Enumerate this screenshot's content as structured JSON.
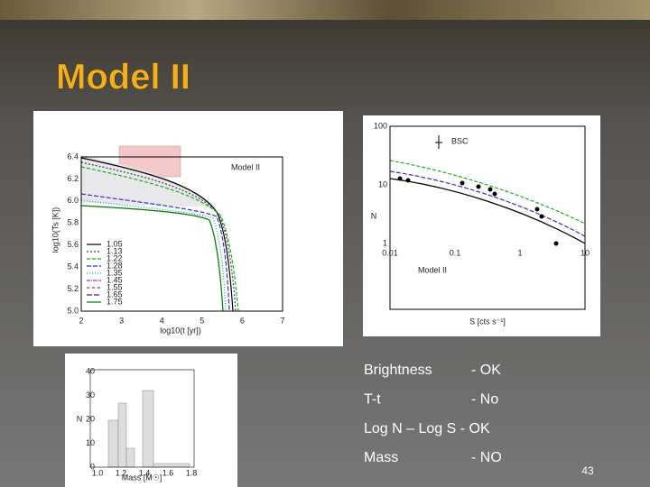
{
  "title": "Model II",
  "figures": [
    {
      "label": "Model II",
      "y_axis": "log10(Ts [K])",
      "x_axis": "log10(t [yr])",
      "xticks": [
        "2",
        "3",
        "4",
        "5",
        "6",
        "7"
      ],
      "yticks": [
        "6.4",
        "6.2",
        "6.0",
        "5.8",
        "5.6",
        "5.4",
        "5.2",
        "5.0"
      ],
      "legend": [
        "1.05",
        "1.13",
        "1.22",
        "1.28",
        "1.35",
        "1.45",
        "1.55",
        "1.65",
        "1.75"
      ]
    },
    {
      "label": "Model II",
      "annotation": "BSC",
      "y_axis": "N",
      "x_axis": "S [cts s⁻¹]",
      "xticks": [
        "0.01",
        "0.1",
        "1",
        "10"
      ],
      "yticks": [
        "100",
        "10",
        "1"
      ]
    },
    {
      "y_axis": "N",
      "x_axis": "Mass [M☉]",
      "xticks": [
        "1.0",
        "1.2",
        "1.4",
        "1.6",
        "1.8"
      ],
      "yticks": [
        "40",
        "30",
        "20",
        "10",
        "0"
      ]
    }
  ],
  "bullets": [
    [
      "Brightness",
      "- OK"
    ],
    [
      "T-t",
      "- No"
    ],
    [
      "Log N – Log S -  OK"
    ],
    [
      "Mass",
      "- NO"
    ]
  ],
  "page_number": "43"
}
